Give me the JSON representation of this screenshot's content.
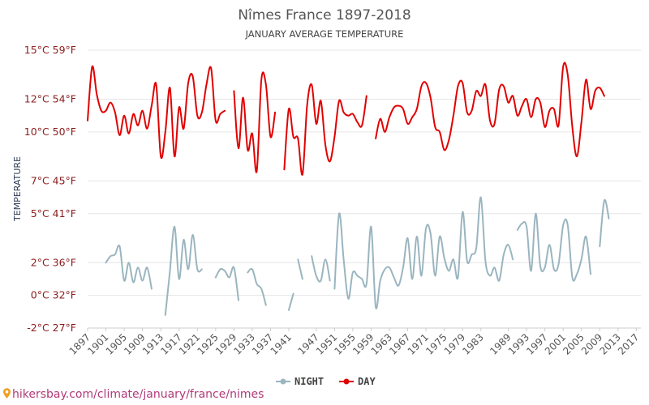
{
  "chart_data": {
    "type": "line",
    "title": "Nîmes France 1897-2018",
    "subtitle": "JANUARY AVERAGE TEMPERATURE",
    "ylabel": "TEMPERATURE",
    "ylim": [
      -2,
      15
    ],
    "yticks": [
      {
        "value": 15,
        "label": "15°C 59°F"
      },
      {
        "value": 12,
        "label": "12°C 54°F"
      },
      {
        "value": 10,
        "label": "10°C 50°F"
      },
      {
        "value": 7,
        "label": "7°C 45°F"
      },
      {
        "value": 5,
        "label": "5°C 41°F"
      },
      {
        "value": 2,
        "label": "2°C 36°F"
      },
      {
        "value": 0,
        "label": "0°C 32°F"
      },
      {
        "value": -2,
        "label": "-2°C 27°F"
      }
    ],
    "xlim": [
      1897,
      2018
    ],
    "xticks": [
      1897,
      1901,
      1905,
      1909,
      1913,
      1917,
      1921,
      1925,
      1929,
      1933,
      1937,
      1941,
      1947,
      1951,
      1955,
      1959,
      1963,
      1967,
      1971,
      1975,
      1979,
      1983,
      1989,
      1993,
      1997,
      2001,
      2005,
      2009,
      2013,
      2017
    ],
    "grid": true,
    "legend_position": "bottom-center",
    "series": [
      {
        "name": "NIGHT",
        "color": "#9ab5bf",
        "points": [
          [
            1901,
            2.0
          ],
          [
            1902,
            2.4
          ],
          [
            1903,
            2.5
          ],
          [
            1904,
            3.0
          ],
          [
            1905,
            0.9
          ],
          [
            1906,
            2.0
          ],
          [
            1907,
            0.8
          ],
          [
            1908,
            1.7
          ],
          [
            1909,
            0.9
          ],
          [
            1910,
            1.7
          ],
          [
            1911,
            0.4
          ],
          [
            null,
            null
          ],
          [
            1914,
            -1.2
          ],
          [
            1915,
            1.5
          ],
          [
            1916,
            4.2
          ],
          [
            1917,
            1.0
          ],
          [
            1918,
            3.4
          ],
          [
            1919,
            1.6
          ],
          [
            1920,
            3.7
          ],
          [
            1921,
            1.6
          ],
          [
            1922,
            1.6
          ],
          [
            null,
            null
          ],
          [
            1925,
            1.1
          ],
          [
            1926,
            1.6
          ],
          [
            1927,
            1.5
          ],
          [
            1928,
            1.1
          ],
          [
            1929,
            1.7
          ],
          [
            1930,
            -0.3
          ],
          [
            null,
            null
          ],
          [
            1932,
            1.4
          ],
          [
            1933,
            1.6
          ],
          [
            1934,
            0.7
          ],
          [
            1935,
            0.4
          ],
          [
            1936,
            -0.6
          ],
          [
            null,
            null
          ],
          [
            1941,
            -0.9
          ],
          [
            1942,
            0.1
          ],
          [
            null,
            null
          ],
          [
            1943,
            2.2
          ],
          [
            1944,
            1.0
          ],
          [
            null,
            null
          ],
          [
            1946,
            2.4
          ],
          [
            1947,
            1.2
          ],
          [
            1948,
            0.9
          ],
          [
            1949,
            2.2
          ],
          [
            1950,
            0.9
          ],
          [
            null,
            null
          ],
          [
            1951,
            0.4
          ],
          [
            1952,
            5.0
          ],
          [
            1953,
            2.2
          ],
          [
            1954,
            -0.2
          ],
          [
            1955,
            1.4
          ],
          [
            1956,
            1.2
          ],
          [
            1957,
            1.0
          ],
          [
            1958,
            0.7
          ],
          [
            1959,
            4.2
          ],
          [
            1960,
            -0.7
          ],
          [
            1961,
            0.9
          ],
          [
            1962,
            1.6
          ],
          [
            1963,
            1.7
          ],
          [
            1964,
            1.1
          ],
          [
            1965,
            0.6
          ],
          [
            1966,
            1.7
          ],
          [
            1967,
            3.5
          ],
          [
            1968,
            1.0
          ],
          [
            1969,
            3.6
          ],
          [
            1970,
            1.2
          ],
          [
            1971,
            4.1
          ],
          [
            1972,
            3.8
          ],
          [
            1973,
            1.2
          ],
          [
            1974,
            3.6
          ],
          [
            1975,
            2.3
          ],
          [
            1976,
            1.5
          ],
          [
            1977,
            2.2
          ],
          [
            1978,
            1.1
          ],
          [
            1979,
            5.1
          ],
          [
            1980,
            2.1
          ],
          [
            1981,
            2.5
          ],
          [
            1982,
            2.9
          ],
          [
            1983,
            6.0
          ],
          [
            1984,
            2.1
          ],
          [
            1985,
            1.2
          ],
          [
            1986,
            1.7
          ],
          [
            1987,
            0.9
          ],
          [
            1988,
            2.5
          ],
          [
            1989,
            3.1
          ],
          [
            1990,
            2.2
          ],
          [
            null,
            null
          ],
          [
            1991,
            4.0
          ],
          [
            1992,
            4.4
          ],
          [
            1993,
            4.2
          ],
          [
            1994,
            1.5
          ],
          [
            1995,
            5.0
          ],
          [
            1996,
            1.8
          ],
          [
            1997,
            1.7
          ],
          [
            1998,
            3.1
          ],
          [
            1999,
            1.6
          ],
          [
            2000,
            1.9
          ],
          [
            2001,
            4.3
          ],
          [
            2002,
            4.3
          ],
          [
            2003,
            1.1
          ],
          [
            2004,
            1.3
          ],
          [
            2005,
            2.2
          ],
          [
            2006,
            3.6
          ],
          [
            2007,
            1.3
          ],
          [
            null,
            null
          ],
          [
            2009,
            3.0
          ],
          [
            2010,
            5.8
          ],
          [
            2011,
            4.7
          ]
        ]
      },
      {
        "name": "DAY",
        "color": "#e10000",
        "points": [
          [
            1897,
            10.7
          ],
          [
            1898,
            14.0
          ],
          [
            1899,
            12.3
          ],
          [
            1900,
            11.3
          ],
          [
            1901,
            11.3
          ],
          [
            1902,
            11.8
          ],
          [
            1903,
            11.2
          ],
          [
            1904,
            9.8
          ],
          [
            1905,
            11.0
          ],
          [
            1906,
            9.9
          ],
          [
            1907,
            11.1
          ],
          [
            1908,
            10.4
          ],
          [
            1909,
            11.3
          ],
          [
            1910,
            10.2
          ],
          [
            1911,
            11.6
          ],
          [
            1912,
            12.9
          ],
          [
            1913,
            8.5
          ],
          [
            1914,
            10.0
          ],
          [
            1915,
            12.7
          ],
          [
            1916,
            8.5
          ],
          [
            1917,
            11.5
          ],
          [
            1918,
            10.2
          ],
          [
            1919,
            13.0
          ],
          [
            1920,
            13.4
          ],
          [
            1921,
            11.0
          ],
          [
            1922,
            11.2
          ],
          [
            1923,
            12.9
          ],
          [
            1924,
            13.9
          ],
          [
            1925,
            10.7
          ],
          [
            1926,
            11.1
          ],
          [
            1927,
            11.3
          ],
          [
            null,
            null
          ],
          [
            1929,
            12.5
          ],
          [
            1930,
            9.0
          ],
          [
            1931,
            12.1
          ],
          [
            1932,
            8.9
          ],
          [
            1933,
            9.9
          ],
          [
            1934,
            7.6
          ],
          [
            1935,
            13.2
          ],
          [
            1936,
            12.9
          ],
          [
            1937,
            9.7
          ],
          [
            1938,
            11.2
          ],
          [
            null,
            null
          ],
          [
            1940,
            7.7
          ],
          [
            1941,
            11.4
          ],
          [
            1942,
            9.7
          ],
          [
            1943,
            9.6
          ],
          [
            1944,
            7.4
          ],
          [
            1945,
            11.6
          ],
          [
            1946,
            12.9
          ],
          [
            1947,
            10.5
          ],
          [
            1948,
            11.9
          ],
          [
            1949,
            9.2
          ],
          [
            1950,
            8.2
          ],
          [
            1951,
            9.7
          ],
          [
            1952,
            11.9
          ],
          [
            1953,
            11.2
          ],
          [
            1954,
            11.0
          ],
          [
            1955,
            11.1
          ],
          [
            1956,
            10.6
          ],
          [
            1957,
            10.4
          ],
          [
            1958,
            12.2
          ],
          [
            null,
            null
          ],
          [
            1960,
            9.6
          ],
          [
            1961,
            10.8
          ],
          [
            1962,
            10.0
          ],
          [
            1963,
            10.9
          ],
          [
            1964,
            11.5
          ],
          [
            1965,
            11.6
          ],
          [
            1966,
            11.4
          ],
          [
            1967,
            10.5
          ],
          [
            1968,
            10.9
          ],
          [
            1969,
            11.4
          ],
          [
            1970,
            12.8
          ],
          [
            1971,
            13.0
          ],
          [
            1972,
            12.1
          ],
          [
            1973,
            10.3
          ],
          [
            1974,
            10.0
          ],
          [
            1975,
            8.9
          ],
          [
            1976,
            9.5
          ],
          [
            1977,
            11.0
          ],
          [
            1978,
            12.8
          ],
          [
            1979,
            13.0
          ],
          [
            1980,
            11.2
          ],
          [
            1981,
            11.3
          ],
          [
            1982,
            12.5
          ],
          [
            1983,
            12.2
          ],
          [
            1984,
            12.9
          ],
          [
            1985,
            10.7
          ],
          [
            1986,
            10.5
          ],
          [
            1987,
            12.6
          ],
          [
            1988,
            12.8
          ],
          [
            1989,
            11.8
          ],
          [
            1990,
            12.2
          ],
          [
            1991,
            11.0
          ],
          [
            1992,
            11.6
          ],
          [
            1993,
            12.0
          ],
          [
            1994,
            10.9
          ],
          [
            1995,
            12.0
          ],
          [
            1996,
            11.8
          ],
          [
            1997,
            10.3
          ],
          [
            1998,
            11.3
          ],
          [
            1999,
            11.4
          ],
          [
            2000,
            10.4
          ],
          [
            2001,
            14.0
          ],
          [
            2002,
            13.5
          ],
          [
            2003,
            10.3
          ],
          [
            2004,
            8.5
          ],
          [
            2005,
            10.6
          ],
          [
            2006,
            13.2
          ],
          [
            2007,
            11.4
          ],
          [
            2008,
            12.5
          ],
          [
            2009,
            12.7
          ],
          [
            2010,
            12.2
          ]
        ]
      }
    ]
  },
  "legend": [
    {
      "name": "NIGHT",
      "color": "#9ab5bf"
    },
    {
      "name": "DAY",
      "color": "#e10000"
    }
  ],
  "footer": {
    "text": "hikersbay.com/climate/january/france/nimes",
    "color": "#b13a7a",
    "icon": "map-pin-icon"
  }
}
